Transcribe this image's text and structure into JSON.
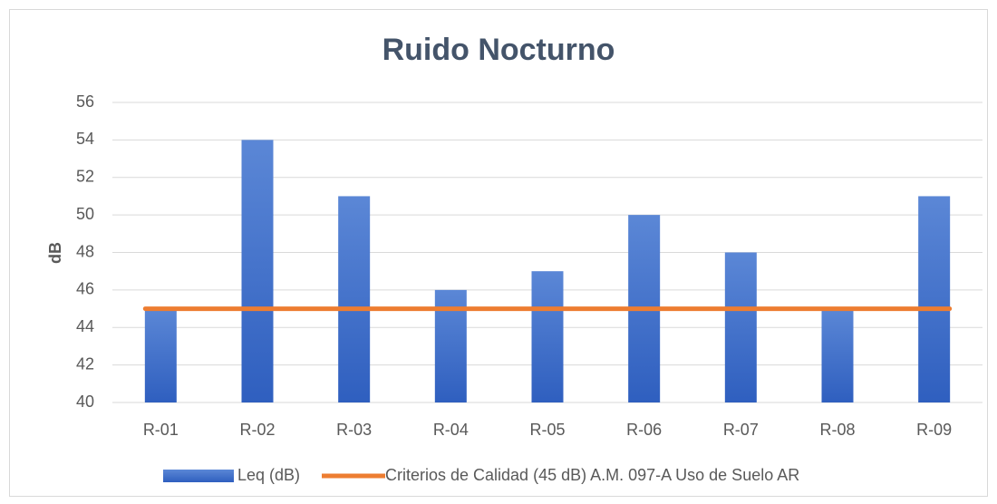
{
  "chart_data": {
    "type": "bar",
    "title": "Ruido Nocturno",
    "y_label": "dB",
    "categories": [
      "R-01",
      "R-02",
      "R-03",
      "R-04",
      "R-05",
      "R-06",
      "R-07",
      "R-08",
      "R-09"
    ],
    "series": [
      {
        "name": "Leq (dB)",
        "color": "#4472c4",
        "values": [
          45,
          54,
          51,
          46,
          47,
          50,
          48,
          45,
          51
        ]
      },
      {
        "name": "Criterios de Calidad (45 dB) A.M. 097-A Uso de Suelo AR",
        "color": "#ed7d31",
        "type": "line",
        "values": [
          45,
          45,
          45,
          45,
          45,
          45,
          45,
          45,
          45
        ]
      }
    ],
    "ylim": [
      40,
      56
    ],
    "yticks": [
      40,
      42,
      44,
      46,
      48,
      50,
      52,
      54,
      56
    ],
    "grid": true,
    "legend": "bottom"
  }
}
